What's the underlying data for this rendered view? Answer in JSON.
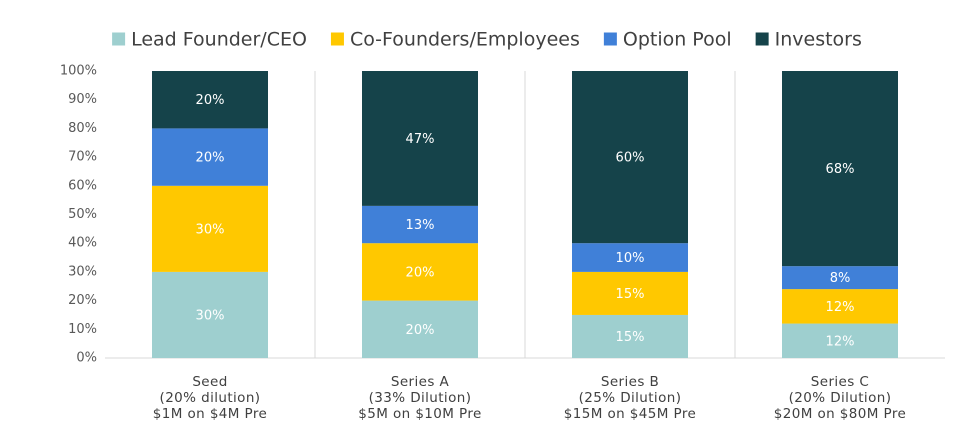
{
  "chart_data": {
    "type": "bar",
    "stacked": true,
    "normalized_percent": true,
    "categories": [
      [
        "Seed",
        "(20% dilution)",
        "$1M on $4M Pre"
      ],
      [
        "Series A",
        "(33% Dilution)",
        "$5M on $10M Pre"
      ],
      [
        "Series B",
        "(25% Dilution)",
        "$15M on $45M Pre"
      ],
      [
        "Series C",
        "(20% Dilution)",
        "$20M on $80M Pre"
      ]
    ],
    "series": [
      {
        "name": "Lead Founder/CEO",
        "color": "#9ECFCF",
        "values": [
          30,
          20,
          15,
          12
        ],
        "labels": [
          "30%",
          "20%",
          "15%",
          "12%"
        ]
      },
      {
        "name": "Co-Founders/Employees",
        "color": "#FFC800",
        "values": [
          30,
          20,
          15,
          12
        ],
        "labels": [
          "30%",
          "20%",
          "15%",
          "12%"
        ]
      },
      {
        "name": "Option Pool",
        "color": "#4080D8",
        "values": [
          20,
          13,
          10,
          8
        ],
        "labels": [
          "20%",
          "13%",
          "10%",
          "8%"
        ]
      },
      {
        "name": "Investors",
        "color": "#15434A",
        "values": [
          20,
          47,
          60,
          68
        ],
        "labels": [
          "20%",
          "47%",
          "60%",
          "68%"
        ]
      }
    ],
    "ylim": [
      0,
      100
    ],
    "yticks": [
      0,
      10,
      20,
      30,
      40,
      50,
      60,
      70,
      80,
      90,
      100
    ],
    "ytick_labels": [
      "0%",
      "10%",
      "20%",
      "30%",
      "40%",
      "50%",
      "60%",
      "70%",
      "80%",
      "90%",
      "100%"
    ],
    "xlabel": "",
    "ylabel": "",
    "title": "",
    "legend_position": "top",
    "grid": false,
    "category_separators": true,
    "axis_color": "#D9D9D9",
    "label_color": "#FFFFFF"
  }
}
